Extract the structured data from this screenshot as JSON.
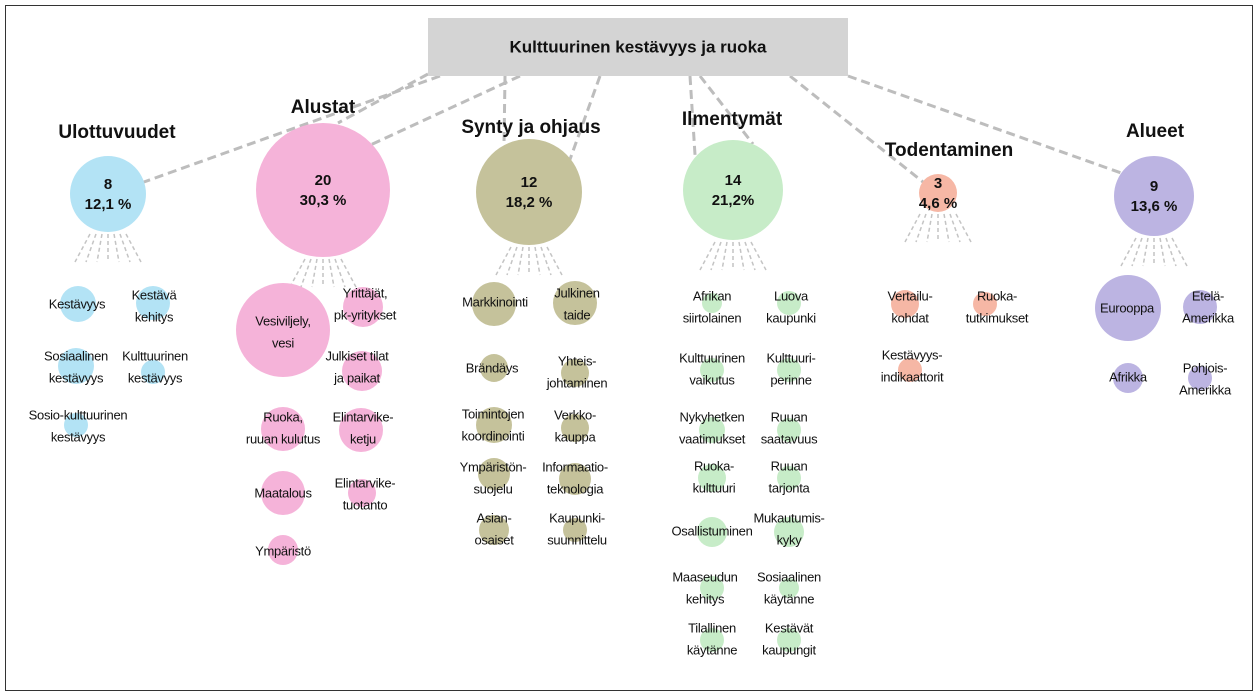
{
  "title": "Kulttuurinen kestävyys ja ruoka",
  "groups": [
    {
      "name": "Ulottuvuudet",
      "count": 8,
      "percent": "12,1 %",
      "items": [
        {
          "label": [
            "Kestävyys"
          ]
        },
        {
          "label": [
            "Kestävä",
            "kehitys"
          ]
        },
        {
          "label": [
            "Sosiaalinen",
            "kestävyys"
          ]
        },
        {
          "label": [
            "Kulttuurinen",
            "kestävyys"
          ]
        },
        {
          "label": [
            "Sosio-kulttuurinen",
            "kestävyys"
          ]
        }
      ]
    },
    {
      "name": "Alustat",
      "count": 20,
      "percent": "30,3 %",
      "items": [
        {
          "label": [
            "Vesiviljely,",
            "vesi"
          ]
        },
        {
          "label": [
            "Yrittäjät,",
            "pk-yritykset"
          ]
        },
        {
          "label": [
            "Julkiset tilat",
            "ja paikat"
          ]
        },
        {
          "label": [
            "Ruoka,",
            "ruuan kulutus"
          ]
        },
        {
          "label": [
            "Elintarvike-",
            "ketju"
          ]
        },
        {
          "label": [
            "Maatalous"
          ]
        },
        {
          "label": [
            "Elintarvike-",
            "tuotanto"
          ]
        },
        {
          "label": [
            "Ympäristö"
          ]
        }
      ]
    },
    {
      "name": "Synty ja ohjaus",
      "count": 12,
      "percent": "18,2 %",
      "items": [
        {
          "label": [
            "Markkinointi"
          ]
        },
        {
          "label": [
            "Julkinen",
            "taide"
          ]
        },
        {
          "label": [
            "Brändäys"
          ]
        },
        {
          "label": [
            "Yhteis-",
            "johtaminen"
          ]
        },
        {
          "label": [
            "Toimintojen",
            "koordinointi"
          ]
        },
        {
          "label": [
            "Verkko-",
            "kauppa"
          ]
        },
        {
          "label": [
            "Ympäristön-",
            "suojelu"
          ]
        },
        {
          "label": [
            "Informaatio-",
            "teknologia"
          ]
        },
        {
          "label": [
            "Asian-",
            "osaiset"
          ]
        },
        {
          "label": [
            "Kaupunki-",
            "suunnittelu"
          ]
        }
      ]
    },
    {
      "name": "Ilmentymät",
      "count": 14,
      "percent": "21,2%",
      "items": [
        {
          "label": [
            "Afrikan",
            "siirtolainen"
          ]
        },
        {
          "label": [
            "Luova",
            "kaupunki"
          ]
        },
        {
          "label": [
            "Kulttuurinen",
            "vaikutus"
          ]
        },
        {
          "label": [
            "Kulttuuri-",
            "perinne"
          ]
        },
        {
          "label": [
            "Nykyhetken",
            "vaatimukset"
          ]
        },
        {
          "label": [
            "Ruuan",
            "saatavuus"
          ]
        },
        {
          "label": [
            "Ruoka-",
            "kulttuuri"
          ]
        },
        {
          "label": [
            "Ruuan",
            "tarjonta"
          ]
        },
        {
          "label": [
            "Osallistuminen"
          ]
        },
        {
          "label": [
            "Mukautumis-",
            "kyky"
          ]
        },
        {
          "label": [
            "Maaseudun",
            "kehitys"
          ]
        },
        {
          "label": [
            "Sosiaalinen",
            "käytänne"
          ]
        },
        {
          "label": [
            "Tilallinen",
            "käytänne"
          ]
        },
        {
          "label": [
            "Kestävät",
            "kaupungit"
          ]
        }
      ]
    },
    {
      "name": "Todentaminen",
      "count": 3,
      "percent": "4,6 %",
      "items": [
        {
          "label": [
            "Vertailu-",
            "kohdat"
          ]
        },
        {
          "label": [
            "Ruoka-",
            "tutkimukset"
          ]
        },
        {
          "label": [
            "Kestävyys-",
            "indikaattorit"
          ]
        }
      ]
    },
    {
      "name": "Alueet",
      "count": 9,
      "percent": "13,6 %",
      "items": [
        {
          "label": [
            "Eurooppa"
          ]
        },
        {
          "label": [
            "Etelä-",
            "Amerikka"
          ]
        },
        {
          "label": [
            "Afrikka"
          ]
        },
        {
          "label": [
            "Pohjois-",
            "Amerikka"
          ]
        }
      ]
    }
  ]
}
